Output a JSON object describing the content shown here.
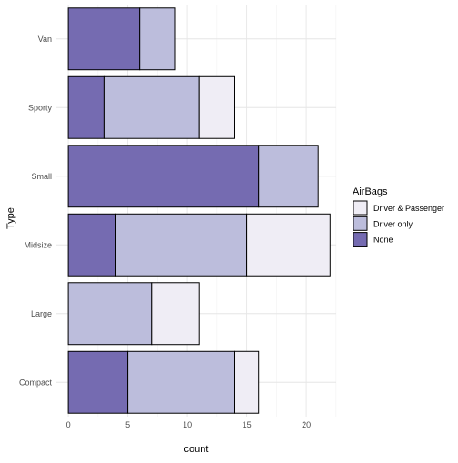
{
  "chart_data": {
    "type": "bar",
    "orientation": "horizontal",
    "stacked": true,
    "categories": [
      "Compact",
      "Large",
      "Midsize",
      "Small",
      "Sporty",
      "Van"
    ],
    "series": [
      {
        "name": "None",
        "values": [
          5,
          0,
          4,
          16,
          3,
          6
        ],
        "color": "#756bb1"
      },
      {
        "name": "Driver only",
        "values": [
          9,
          7,
          11,
          5,
          8,
          3
        ],
        "color": "#bcbddc"
      },
      {
        "name": "Driver & Passenger",
        "values": [
          2,
          4,
          7,
          0,
          3,
          0
        ],
        "color": "#efedf5"
      }
    ],
    "xlabel": "count",
    "ylabel": "Type",
    "xlim": [
      0,
      22.85
    ],
    "xticks": [
      0,
      5,
      10,
      15,
      20
    ],
    "grid": true,
    "legend": {
      "title": "AirBags",
      "position": "right",
      "items": [
        {
          "label": "Driver & Passenger",
          "color": "#efedf5"
        },
        {
          "label": "Driver only",
          "color": "#bcbddc"
        },
        {
          "label": "None",
          "color": "#756bb1"
        }
      ]
    }
  }
}
